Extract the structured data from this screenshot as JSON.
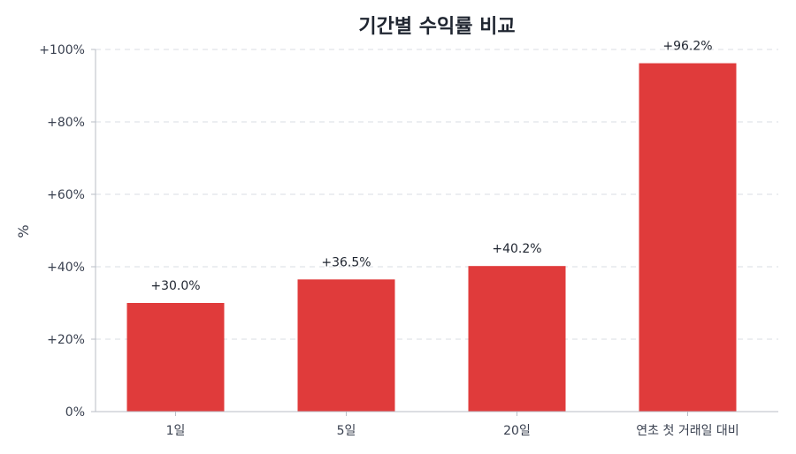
{
  "chart_data": {
    "type": "bar",
    "title": "기간별 수익률 비교",
    "xlabel": "",
    "ylabel": "%",
    "categories": [
      "1일",
      "5일",
      "20일",
      "연초 첫 거래일 대비"
    ],
    "values": [
      30.0,
      36.5,
      40.2,
      96.2
    ],
    "data_labels": [
      "+30.0%",
      "+36.5%",
      "+40.2%",
      "+96.2%"
    ],
    "ylim": [
      0,
      100
    ],
    "yticks": [
      0,
      20,
      40,
      60,
      80,
      100
    ],
    "ytick_labels": [
      "0%",
      "+20%",
      "+40%",
      "+60%",
      "+80%",
      "+100%"
    ],
    "grid": true,
    "bar_color": "#e03b3b"
  }
}
